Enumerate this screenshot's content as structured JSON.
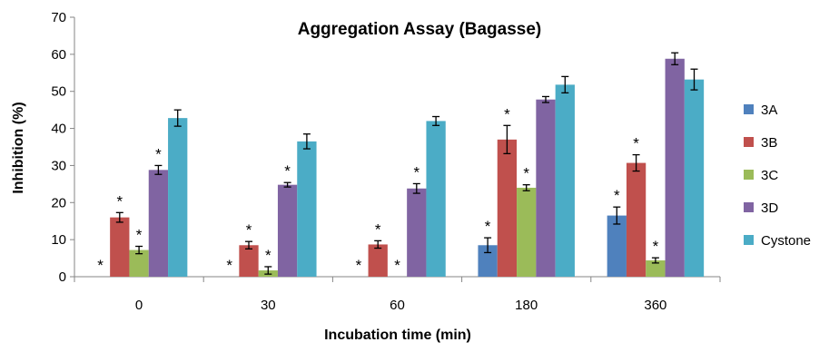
{
  "chart_data": {
    "type": "bar",
    "title": "Aggregation Assay (Bagasse)",
    "xlabel": "Incubation time (min)",
    "ylabel": "Inhibition (%)",
    "ylim": [
      0,
      70
    ],
    "yticks": [
      0,
      10,
      20,
      30,
      40,
      50,
      60,
      70
    ],
    "grid": false,
    "legend_position": "right",
    "categories": [
      "0",
      "30",
      "60",
      "180",
      "360"
    ],
    "series": [
      {
        "name": "3A",
        "color": "#4F81BD",
        "values": [
          0,
          0,
          0,
          8.5,
          16.5
        ],
        "errors": [
          0,
          0,
          0,
          2.0,
          2.3
        ],
        "significance": [
          "*",
          "*",
          "*",
          "*",
          "*"
        ]
      },
      {
        "name": "3B",
        "color": "#C0504D",
        "values": [
          16,
          8.5,
          8.7,
          37,
          30.7
        ],
        "errors": [
          1.3,
          1.0,
          1.0,
          3.8,
          2.2
        ],
        "significance": [
          "*",
          "*",
          "*",
          "*",
          "*"
        ]
      },
      {
        "name": "3C",
        "color": "#9BBB59",
        "values": [
          7.2,
          1.7,
          0,
          24,
          4.4
        ],
        "errors": [
          1.0,
          1.0,
          0,
          0.8,
          0.7
        ],
        "significance": [
          "*",
          "*",
          "*",
          "*",
          "*"
        ]
      },
      {
        "name": "3D",
        "color": "#8064A2",
        "values": [
          28.8,
          24.8,
          23.8,
          47.8,
          58.8
        ],
        "errors": [
          1.2,
          0.6,
          1.3,
          0.8,
          1.6
        ],
        "significance": [
          "*",
          "*",
          "*",
          "",
          ""
        ]
      },
      {
        "name": "Cystone",
        "color": "#4BACC6",
        "values": [
          42.8,
          36.5,
          42,
          51.8,
          53.2
        ],
        "errors": [
          2.2,
          2.0,
          1.2,
          2.2,
          2.8
        ],
        "significance": [
          "",
          "",
          "",
          "",
          ""
        ]
      }
    ]
  }
}
